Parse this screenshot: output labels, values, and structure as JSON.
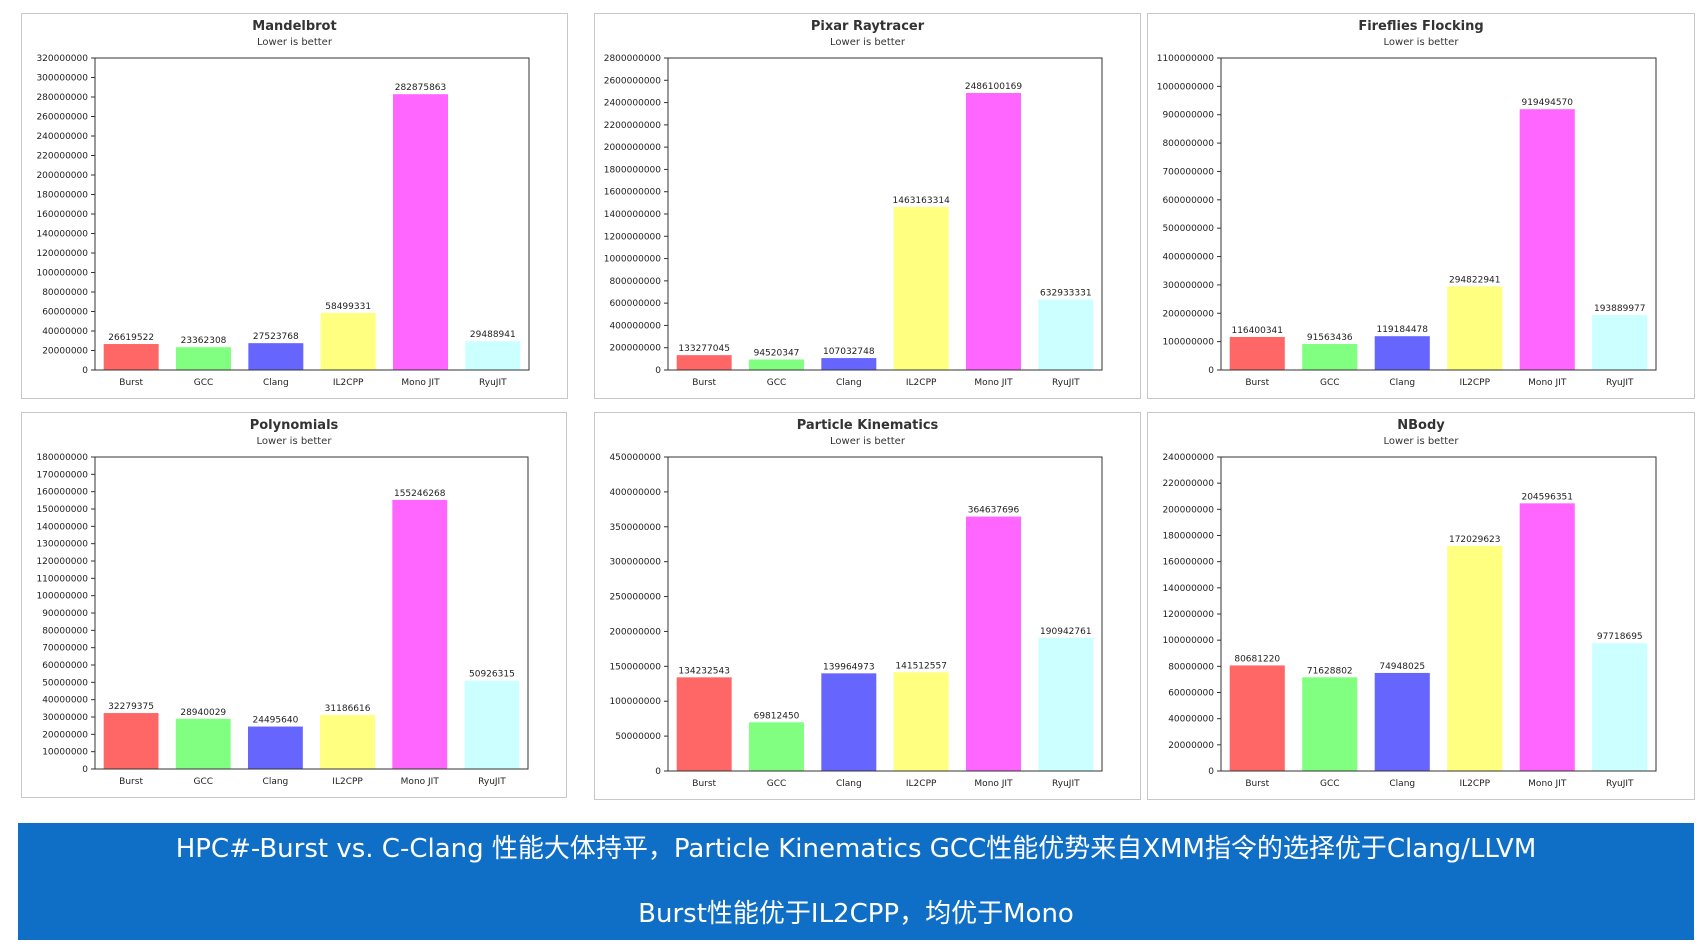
{
  "colors": {
    "Burst": "#ff6666",
    "GCC": "#80ff80",
    "Clang": "#6666ff",
    "IL2CPP": "#ffff80",
    "Mono JIT": "#ff66ff",
    "RyuJIT": "#ccffff"
  },
  "chart_data": [
    {
      "type": "bar",
      "title": "Mandelbrot",
      "subtitle": "Lower is better",
      "categories": [
        "Burst",
        "GCC",
        "Clang",
        "IL2CPP",
        "Mono JIT",
        "RyuJIT"
      ],
      "values": [
        26619522,
        23362308,
        27523768,
        58499331,
        282875863,
        29488941
      ],
      "data_labels": [
        "26619522",
        "23362308",
        "27523768",
        "58499331",
        "282875863",
        "29488941"
      ],
      "ylim": [
        0,
        320000000
      ],
      "yticks": [
        0,
        20000000,
        40000000,
        60000000,
        80000000,
        100000000,
        120000000,
        140000000,
        160000000,
        180000000,
        200000000,
        220000000,
        240000000,
        260000000,
        280000000,
        300000000,
        320000000
      ],
      "ytick_labels": [
        "0",
        "20000000",
        "40000000",
        "60000000",
        "80000000",
        "100000000",
        "120000000",
        "140000000",
        "160000000",
        "180000000",
        "200000000",
        "220000000",
        "240000000",
        "260000000",
        "280000000",
        "300000000",
        "320000000"
      ]
    },
    {
      "type": "bar",
      "title": "Pixar Raytracer",
      "subtitle": "Lower is better",
      "categories": [
        "Burst",
        "GCC",
        "Clang",
        "IL2CPP",
        "Mono JIT",
        "RyuJIT"
      ],
      "values": [
        133277045,
        94520347,
        107032748,
        1463163314,
        2486100169,
        632933331
      ],
      "data_labels": [
        "133277045",
        "94520347",
        "107032748",
        "1463163314",
        "2486100169",
        "632933331"
      ],
      "ylim": [
        0,
        2800000000
      ],
      "yticks": [
        0,
        200000000,
        400000000,
        600000000,
        800000000,
        1000000000,
        1200000000,
        1400000000,
        1600000000,
        1800000000,
        2000000000,
        2200000000,
        2400000000,
        2600000000,
        2800000000
      ],
      "ytick_labels": [
        "0",
        "200000000",
        "400000000",
        "600000000",
        "800000000",
        "1000000000",
        "1200000000",
        "1400000000",
        "1600000000",
        "1800000000",
        "2000000000",
        "2200000000",
        "2400000000",
        "2600000000",
        "2800000000"
      ]
    },
    {
      "type": "bar",
      "title": "Fireflies Flocking",
      "subtitle": "Lower is better",
      "categories": [
        "Burst",
        "GCC",
        "Clang",
        "IL2CPP",
        "Mono JIT",
        "RyuJIT"
      ],
      "values": [
        116400341,
        91563436,
        119184478,
        294822941,
        919494570,
        193889977
      ],
      "data_labels": [
        "116400341",
        "91563436",
        "119184478",
        "294822941",
        "919494570",
        "193889977"
      ],
      "ylim": [
        0,
        1100000000
      ],
      "yticks": [
        0,
        100000000,
        200000000,
        300000000,
        400000000,
        500000000,
        600000000,
        700000000,
        800000000,
        900000000,
        1000000000,
        1100000000
      ],
      "ytick_labels": [
        "0",
        "100000000",
        "200000000",
        "300000000",
        "400000000",
        "500000000",
        "600000000",
        "700000000",
        "800000000",
        "900000000",
        "1000000000",
        "1100000000"
      ]
    },
    {
      "type": "bar",
      "title": "Polynomials",
      "subtitle": "Lower is better",
      "categories": [
        "Burst",
        "GCC",
        "Clang",
        "IL2CPP",
        "Mono JIT",
        "RyuJIT"
      ],
      "values": [
        32279375,
        28940029,
        24495640,
        31186616,
        155246268,
        50926315
      ],
      "data_labels": [
        "32279375",
        "28940029",
        "24495640",
        "31186616",
        "155246268",
        "50926315"
      ],
      "ylim": [
        0,
        180000000
      ],
      "yticks": [
        0,
        10000000,
        20000000,
        30000000,
        40000000,
        50000000,
        60000000,
        70000000,
        80000000,
        90000000,
        100000000,
        110000000,
        120000000,
        130000000,
        140000000,
        150000000,
        160000000,
        170000000,
        180000000
      ],
      "ytick_labels": [
        "0",
        "10000000",
        "20000000",
        "30000000",
        "40000000",
        "50000000",
        "60000000",
        "70000000",
        "80000000",
        "90000000",
        "100000000",
        "110000000",
        "120000000",
        "130000000",
        "140000000",
        "150000000",
        "160000000",
        "170000000",
        "180000000"
      ]
    },
    {
      "type": "bar",
      "title": "Particle Kinematics",
      "subtitle": "Lower is better",
      "categories": [
        "Burst",
        "GCC",
        "Clang",
        "IL2CPP",
        "Mono JIT",
        "RyuJIT"
      ],
      "values": [
        134232543,
        69812450,
        139964973,
        141512557,
        364637696,
        190942761
      ],
      "data_labels": [
        "134232543",
        "69812450",
        "139964973",
        "141512557",
        "364637696",
        "190942761"
      ],
      "ylim": [
        0,
        450000000
      ],
      "yticks": [
        0,
        50000000,
        100000000,
        150000000,
        200000000,
        250000000,
        300000000,
        350000000,
        400000000,
        450000000
      ],
      "ytick_labels": [
        "0",
        "50000000",
        "100000000",
        "150000000",
        "200000000",
        "250000000",
        "300000000",
        "350000000",
        "400000000",
        "450000000"
      ]
    },
    {
      "type": "bar",
      "title": "NBody",
      "subtitle": "Lower is better",
      "categories": [
        "Burst",
        "GCC",
        "Clang",
        "IL2CPP",
        "Mono JIT",
        "RyuJIT"
      ],
      "values": [
        80681220,
        71628802,
        74948025,
        172029623,
        204596351,
        97718695
      ],
      "data_labels": [
        "80681220",
        "71628802",
        "74948025",
        "172029623",
        "204596351",
        "97718695"
      ],
      "ylim": [
        0,
        240000000
      ],
      "yticks": [
        0,
        20000000,
        40000000,
        60000000,
        80000000,
        100000000,
        120000000,
        140000000,
        160000000,
        180000000,
        200000000,
        220000000,
        240000000
      ],
      "ytick_labels": [
        "0",
        "20000000",
        "40000000",
        "60000000",
        "80000000",
        "100000000",
        "120000000",
        "140000000",
        "160000000",
        "180000000",
        "200000000",
        "220000000",
        "240000000"
      ]
    }
  ],
  "banner": {
    "line1": "HPC#-Burst vs. C-Clang 性能大体持平，Particle Kinematics GCC性能优势来自XMM指令的选择优于Clang/LLVM",
    "line2": "Burst性能优于IL2CPP，均优于Mono"
  }
}
